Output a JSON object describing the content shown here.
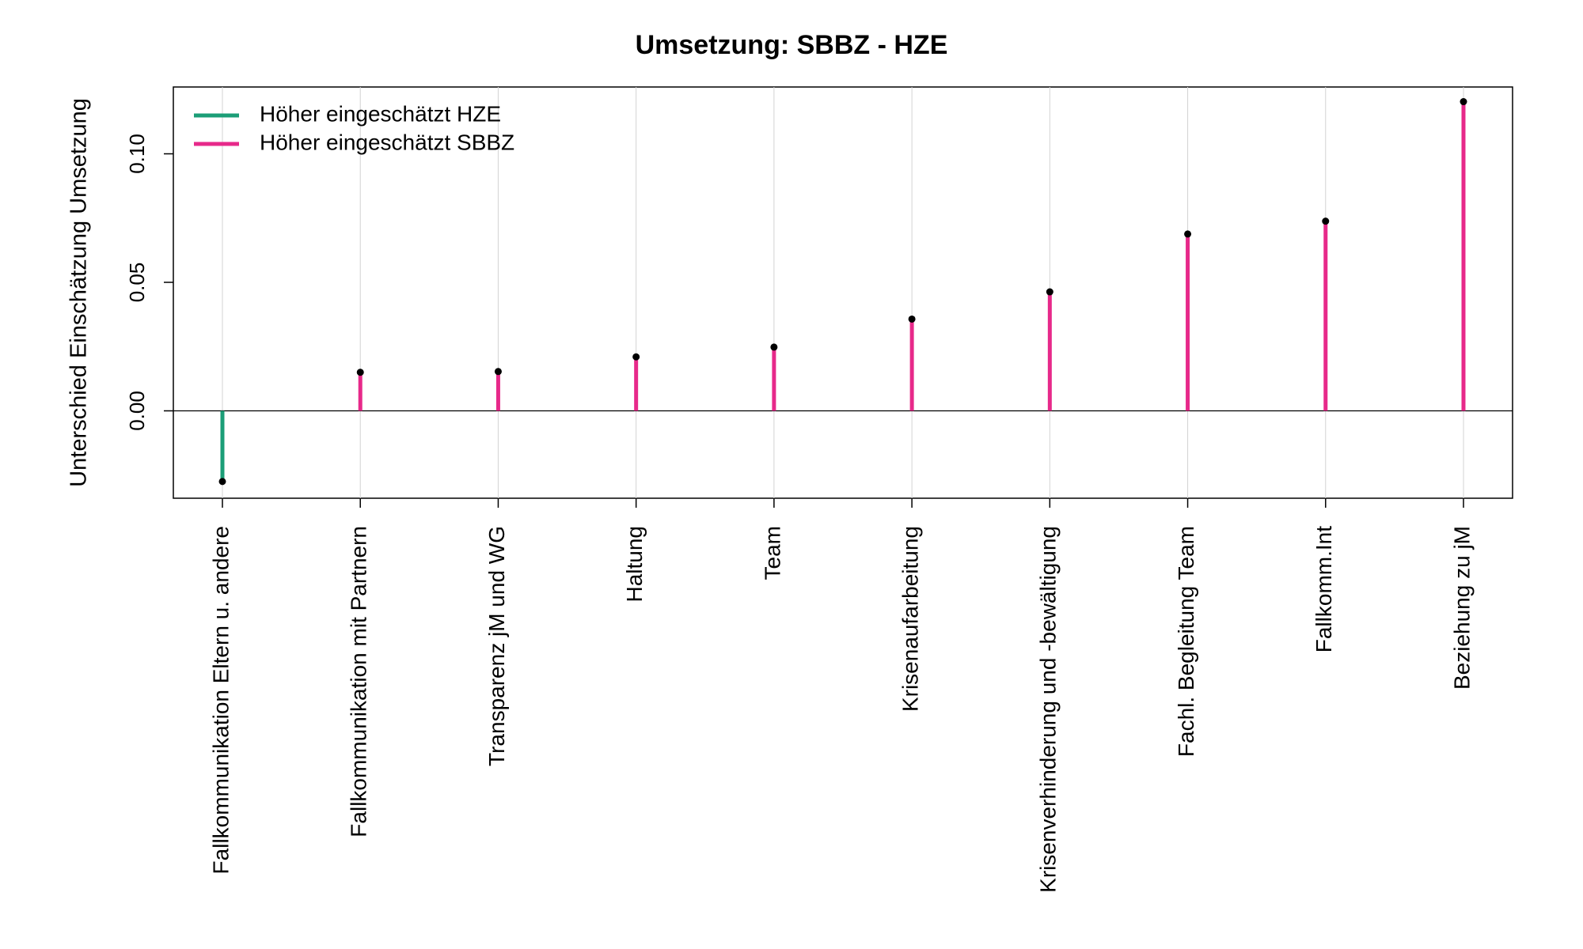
{
  "chart_data": {
    "type": "lollipop",
    "title": "Umsetzung: SBBZ - HZE",
    "ylabel": "Unterschied Einschätzung Umsetzung",
    "xlabel": "",
    "ylim": [
      -0.034,
      0.126
    ],
    "yticks": [
      0.0,
      0.05,
      0.1
    ],
    "ytick_labels": [
      "0.00",
      "0.05",
      "0.10"
    ],
    "grid": "vertical light grey lines at each category",
    "zero_line": true,
    "categories": [
      "Fallkommunikation Eltern u. andere",
      "Fallkommunikation mit Partnern",
      "Transparenz jM und WG",
      "Haltung",
      "Team",
      "Krisenaufarbeitung",
      "Krisenverhinderung und -bewältigung",
      "Fachl. Begleitung Team",
      "Fallkomm.Int",
      "Beziehung zu jM"
    ],
    "values": [
      -0.0275,
      0.015,
      0.0153,
      0.021,
      0.0248,
      0.0357,
      0.0463,
      0.0688,
      0.0738,
      0.1203
    ],
    "colors": {
      "negative": "#1b9e77",
      "positive": "#e7298a",
      "point": "#000000"
    },
    "legend": {
      "position": "top-left",
      "entries": [
        {
          "label": "Höher eingeschätzt HZE",
          "color": "#1b9e77"
        },
        {
          "label": "Höher eingeschätzt SBBZ",
          "color": "#e7298a"
        }
      ]
    }
  }
}
